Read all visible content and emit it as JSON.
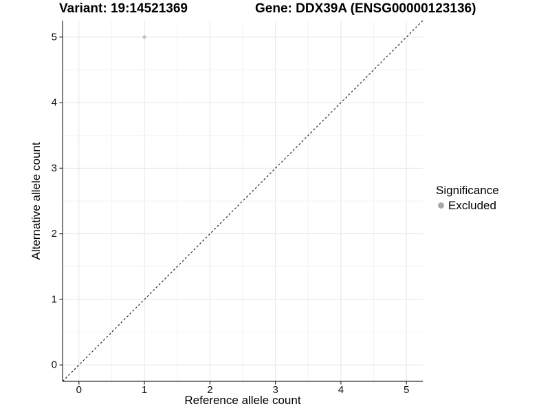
{
  "chart_data": {
    "type": "scatter",
    "title_left": "Variant: 19:14521369",
    "title_right": "Gene: DDX39A (ENSG00000123136)",
    "xlabel": "Reference allele count",
    "ylabel": "Alternative allele count",
    "xlim": [
      -0.25,
      5.25
    ],
    "ylim": [
      -0.25,
      5.25
    ],
    "xticks": [
      0,
      1,
      2,
      3,
      4,
      5
    ],
    "yticks": [
      0,
      1,
      2,
      3,
      4,
      5
    ],
    "grid": {
      "major": true,
      "minor": true
    },
    "reference_line": {
      "type": "identity",
      "from": [
        -0.25,
        -0.25
      ],
      "to": [
        5.25,
        5.25
      ],
      "style": "dashed",
      "color": "#000000"
    },
    "series": [
      {
        "name": "Excluded",
        "color": "#C1C1C1",
        "point_radius": 2.6,
        "points": [
          [
            1,
            5
          ]
        ]
      }
    ],
    "legend": {
      "title": "Significance",
      "position": "right",
      "items": [
        {
          "label": "Excluded",
          "color": "#A9A9A9"
        }
      ]
    },
    "colors": {
      "background": "#FFFFFF",
      "axis_line": "#2B2B2B",
      "grid_major": "#E6E6E6",
      "grid_minor": "#F3F3F3",
      "tick_mark": "#2B2B2B",
      "tick_label": "#111111",
      "title": "#000000"
    }
  }
}
